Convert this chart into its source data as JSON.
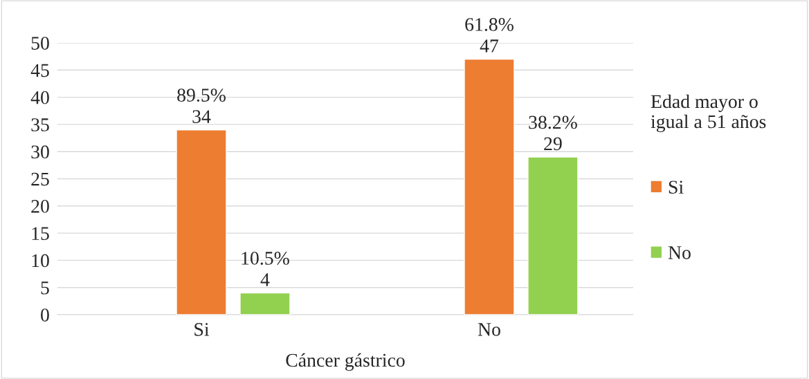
{
  "chart_data": {
    "type": "bar",
    "xlabel": "Cáncer gástrico",
    "legend_title": "Edad mayor o\nigual a 51 años",
    "categories": [
      "Si",
      "No"
    ],
    "series": [
      {
        "name": "Si",
        "color": "#ed7d31",
        "values": [
          34,
          47
        ],
        "value_labels": [
          "89.5%\n34",
          "61.8%\n47"
        ]
      },
      {
        "name": "No",
        "color": "#92d050",
        "values": [
          4,
          29
        ],
        "value_labels": [
          "10.5%\n4",
          "38.2%\n29"
        ]
      }
    ],
    "ylim": [
      0,
      50
    ],
    "yticks": [
      0,
      5,
      10,
      15,
      20,
      25,
      30,
      35,
      40,
      45,
      50
    ],
    "grid": "y",
    "legend": "right"
  }
}
